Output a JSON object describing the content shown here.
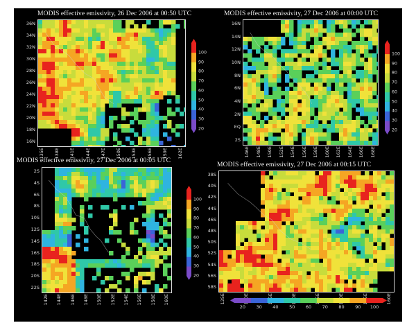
{
  "colors": {
    "background": "#000000",
    "scale": [
      "#7a4bc8",
      "#3a64d8",
      "#2fb4e0",
      "#2fc8a8",
      "#5ad05a",
      "#c8dc3c",
      "#f0e23a",
      "#f5a623",
      "#e8231e"
    ],
    "coastline": "#cfcfcf"
  },
  "colorbar_ticks": [
    "20",
    "30",
    "40",
    "50",
    "60",
    "70",
    "80",
    "90",
    "100"
  ],
  "panels": [
    {
      "id": "p1",
      "title": "MODIS effective emissivity, 26 Dec 2006 at 00:50 UTC",
      "y_ticks": [
        "36N",
        "34N",
        "32N",
        "30N",
        "28N",
        "26N",
        "24N",
        "22N",
        "20N",
        "18N",
        "16N"
      ],
      "x_ticks": [
        "135E",
        "138E",
        "141E",
        "144E",
        "147E",
        "150E",
        "153E",
        "156E",
        "159E",
        "162E"
      ],
      "colorbar": "vertical"
    },
    {
      "id": "p2",
      "title": "MODIS effective emissivity, 27 Dec 2006 at 00:00 UTC",
      "y_ticks": [
        "16N",
        "14N",
        "12N",
        "10N",
        "8N",
        "6N",
        "4N",
        "2N",
        "EQ",
        "2S"
      ],
      "x_ticks": [
        "146E",
        "148E",
        "150E",
        "152E",
        "154E",
        "156E",
        "158E",
        "160E",
        "162E",
        "164E",
        "166E",
        "168E"
      ],
      "colorbar": "vertical"
    },
    {
      "id": "p3",
      "title": "MODIS effective emissivity, 27 Dec 2006 at 00:05 UTC",
      "y_ticks": [
        "2S",
        "4S",
        "6S",
        "8S",
        "10S",
        "12S",
        "14S",
        "16S",
        "18S",
        "20S",
        "22S"
      ],
      "x_ticks": [
        "142E",
        "144E",
        "146E",
        "148E",
        "150E",
        "152E",
        "154E",
        "156E",
        "158E",
        "160E"
      ],
      "colorbar": "vertical"
    },
    {
      "id": "p4",
      "title": "MODIS effective emissivity, 27 Dec 2006 at 00:15 UTC",
      "y_ticks": [
        "38S",
        "40S",
        "42S",
        "44S",
        "46S",
        "48S",
        "50S",
        "52S",
        "54S",
        "56S",
        "58S"
      ],
      "x_ticks": [
        "125E",
        "130E",
        "135E",
        "140E",
        "145E",
        "150E",
        "155E",
        "160E"
      ],
      "colorbar": "horizontal"
    }
  ]
}
